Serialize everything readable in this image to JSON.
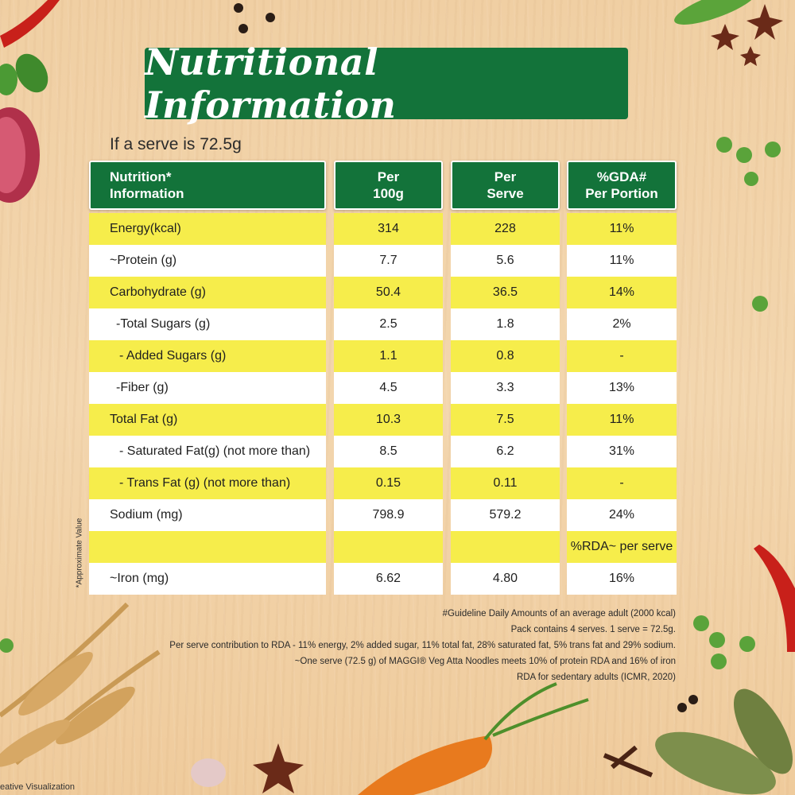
{
  "title": "Nutritional Information",
  "serve_note": "If a serve is 72.5g",
  "table": {
    "headers": [
      "Nutrition*\nInformation",
      "Per\n100g",
      "Per\nServe",
      "%GDA#\nPer Portion"
    ],
    "rows": [
      {
        "label": "Energy(kcal)",
        "per100g": "314",
        "perServe": "228",
        "gda": "11%",
        "indent": 0,
        "style": "y"
      },
      {
        "label": "~Protein (g)",
        "per100g": "7.7",
        "perServe": "5.6",
        "gda": "11%",
        "indent": 0,
        "style": "w"
      },
      {
        "label": "Carbohydrate (g)",
        "per100g": "50.4",
        "perServe": "36.5",
        "gda": "14%",
        "indent": 0,
        "style": "y"
      },
      {
        "label": "-Total Sugars (g)",
        "per100g": "2.5",
        "perServe": "1.8",
        "gda": "2%",
        "indent": 1,
        "style": "w"
      },
      {
        "label": "- Added Sugars (g)",
        "per100g": "1.1",
        "perServe": "0.8",
        "gda": "-",
        "indent": 2,
        "style": "y"
      },
      {
        "label": "-Fiber (g)",
        "per100g": "4.5",
        "perServe": "3.3",
        "gda": "13%",
        "indent": 1,
        "style": "w"
      },
      {
        "label": "Total Fat (g)",
        "per100g": "10.3",
        "perServe": "7.5",
        "gda": "11%",
        "indent": 0,
        "style": "y"
      },
      {
        "label": "- Saturated Fat(g) (not more than)",
        "per100g": "8.5",
        "perServe": "6.2",
        "gda": "31%",
        "indent": 2,
        "style": "w"
      },
      {
        "label": "- Trans Fat (g) (not more than)",
        "per100g": "0.15",
        "perServe": "0.11",
        "gda": "-",
        "indent": 2,
        "style": "y"
      },
      {
        "label": "Sodium (mg)",
        "per100g": "798.9",
        "perServe": "579.2",
        "gda": "24%",
        "indent": 0,
        "style": "w"
      },
      {
        "label": "",
        "per100g": "",
        "perServe": "",
        "gda": "%RDA~ per serve",
        "indent": 0,
        "style": "y"
      },
      {
        "label": "~Iron (mg)",
        "per100g": "6.62",
        "perServe": "4.80",
        "gda": "16%",
        "indent": 0,
        "style": "w"
      }
    ]
  },
  "side_note": "*Approximate Value",
  "footnotes": [
    "#Guideline Daily Amounts of an average adult (2000 kcal)",
    "Pack contains 4 serves. 1 serve = 72.5g.",
    "Per serve contribution to RDA - 11% energy,  2% added sugar, 11% total fat, 28% saturated fat, 5% trans fat and 29% sodium.",
    "~One serve (72.5 g) of MAGGI® Veg Atta Noodles meets 10% of protein RDA and 16% of iron",
    "RDA for sedentary adults (ICMR, 2020)"
  ],
  "corner_label": "eative Visualization",
  "colors": {
    "banner": "#13733a",
    "yellow_row": "#f6ed4b",
    "white_row": "#ffffff"
  }
}
